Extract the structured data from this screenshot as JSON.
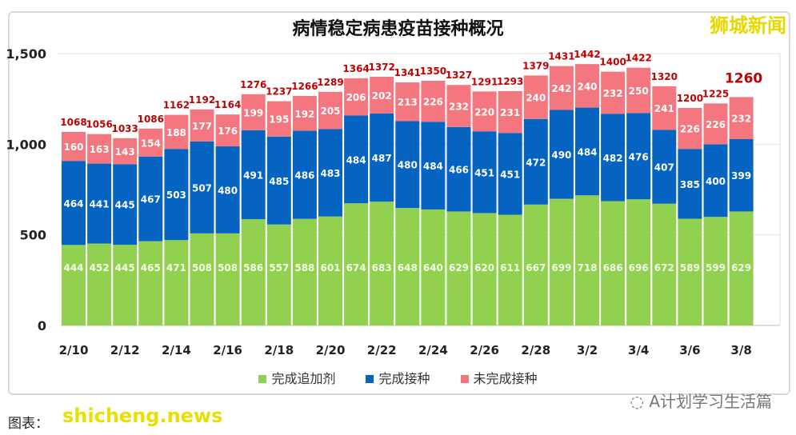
{
  "chart_data": {
    "type": "bar",
    "stacked": true,
    "title": "病情稳定病患疫苗接种概况",
    "categories": [
      "2/10",
      "2/11",
      "2/12",
      "2/13",
      "2/14",
      "2/15",
      "2/16",
      "2/17",
      "2/18",
      "2/19",
      "2/20",
      "2/21",
      "2/22",
      "2/23",
      "2/24",
      "2/25",
      "2/26",
      "2/27",
      "2/28",
      "3/1",
      "3/2",
      "3/3",
      "3/4",
      "3/5",
      "3/6",
      "3/7",
      "3/8"
    ],
    "tick_labels": [
      "2/10",
      "2/12",
      "2/14",
      "2/16",
      "2/18",
      "2/20",
      "2/22",
      "2/24",
      "2/26",
      "2/28",
      "3/2",
      "3/4",
      "3/6",
      "3/8"
    ],
    "y_ticks": [
      "0",
      "500",
      "1,000",
      "1,500"
    ],
    "ylim": [
      0,
      1500
    ],
    "grid": true,
    "legend_position": "bottom",
    "series": [
      {
        "name": "完成追加剂",
        "color": "#92d050",
        "values": [
          444,
          452,
          445,
          465,
          471,
          508,
          508,
          586,
          557,
          588,
          601,
          674,
          683,
          648,
          640,
          629,
          620,
          611,
          667,
          699,
          718,
          686,
          696,
          672,
          589,
          599,
          629
        ]
      },
      {
        "name": "完成接种",
        "color": "#0563c1",
        "values": [
          464,
          441,
          445,
          467,
          503,
          507,
          480,
          491,
          485,
          486,
          483,
          484,
          487,
          480,
          484,
          466,
          451,
          451,
          472,
          490,
          484,
          482,
          476,
          407,
          385,
          400,
          399
        ]
      },
      {
        "name": "未完成接种",
        "color": "#f4777f",
        "values": [
          160,
          163,
          143,
          154,
          188,
          177,
          176,
          199,
          195,
          192,
          205,
          206,
          202,
          213,
          226,
          232,
          220,
          231,
          240,
          242,
          240,
          232,
          250,
          241,
          226,
          226,
          232
        ]
      }
    ],
    "totals": [
      1068,
      1056,
      1033,
      1086,
      1162,
      1192,
      1164,
      1276,
      1237,
      1266,
      1289,
      1364,
      1372,
      1341,
      1350,
      1327,
      1291,
      1293,
      1379,
      1431,
      1442,
      1400,
      1422,
      1320,
      1200,
      1225,
      1260
    ],
    "total_label_color": "#c00000"
  },
  "watermarks": {
    "top": "狮城新闻",
    "bottom": "shicheng.news",
    "wechat": "A计划学习生活篇"
  },
  "credit": "图表：",
  "chart_title": "病情稳定病患疫苗接种概况"
}
